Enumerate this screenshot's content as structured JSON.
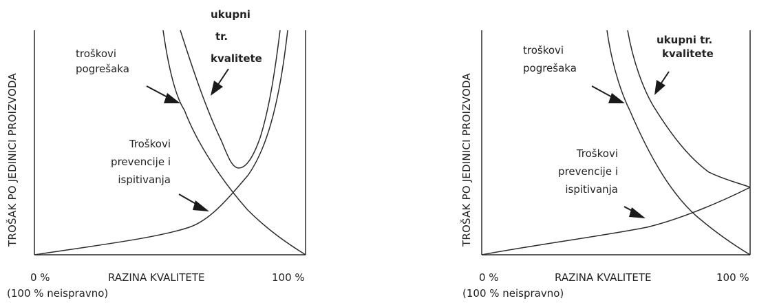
{
  "colors": {
    "line": "#2a2a2a",
    "text": "#222222",
    "background": "#ffffff"
  },
  "diagrams": [
    {
      "y_axis_label": "TROŠAK PO JEDINICI PROIZVODA",
      "x_axis_label": "RAZINA KVALITETE",
      "x_start_label": "0 %",
      "x_start_sub_label": "(100 % neispravno)",
      "x_end_label": "100 %",
      "failure_cost_label_line1": "troškovi",
      "failure_cost_label_line2": "pogrešaka",
      "total_cost_label_line1": "ukupni",
      "total_cost_label_line2": "tr.",
      "total_cost_label_line3": "kvalitete",
      "prevention_label_line1": "Troškovi",
      "prevention_label_line2": "prevencije i",
      "prevention_label_line3": "ispitivanja"
    },
    {
      "y_axis_label": "TROŠAK PO JEDINICI PROIZVODA",
      "x_axis_label": "RAZINA KVALITETE",
      "x_start_label": "0 %",
      "x_start_sub_label": "(100 % neispravno)",
      "x_end_label": "100 %",
      "failure_cost_label_line1": "troškovi",
      "failure_cost_label_line2": "pogrešaka",
      "total_cost_label_line1": "ukupni tr.",
      "total_cost_label_line2": "kvalitete",
      "prevention_label_line1": "Troškovi",
      "prevention_label_line2": "prevencije i",
      "prevention_label_line3": "ispitivanja"
    }
  ]
}
